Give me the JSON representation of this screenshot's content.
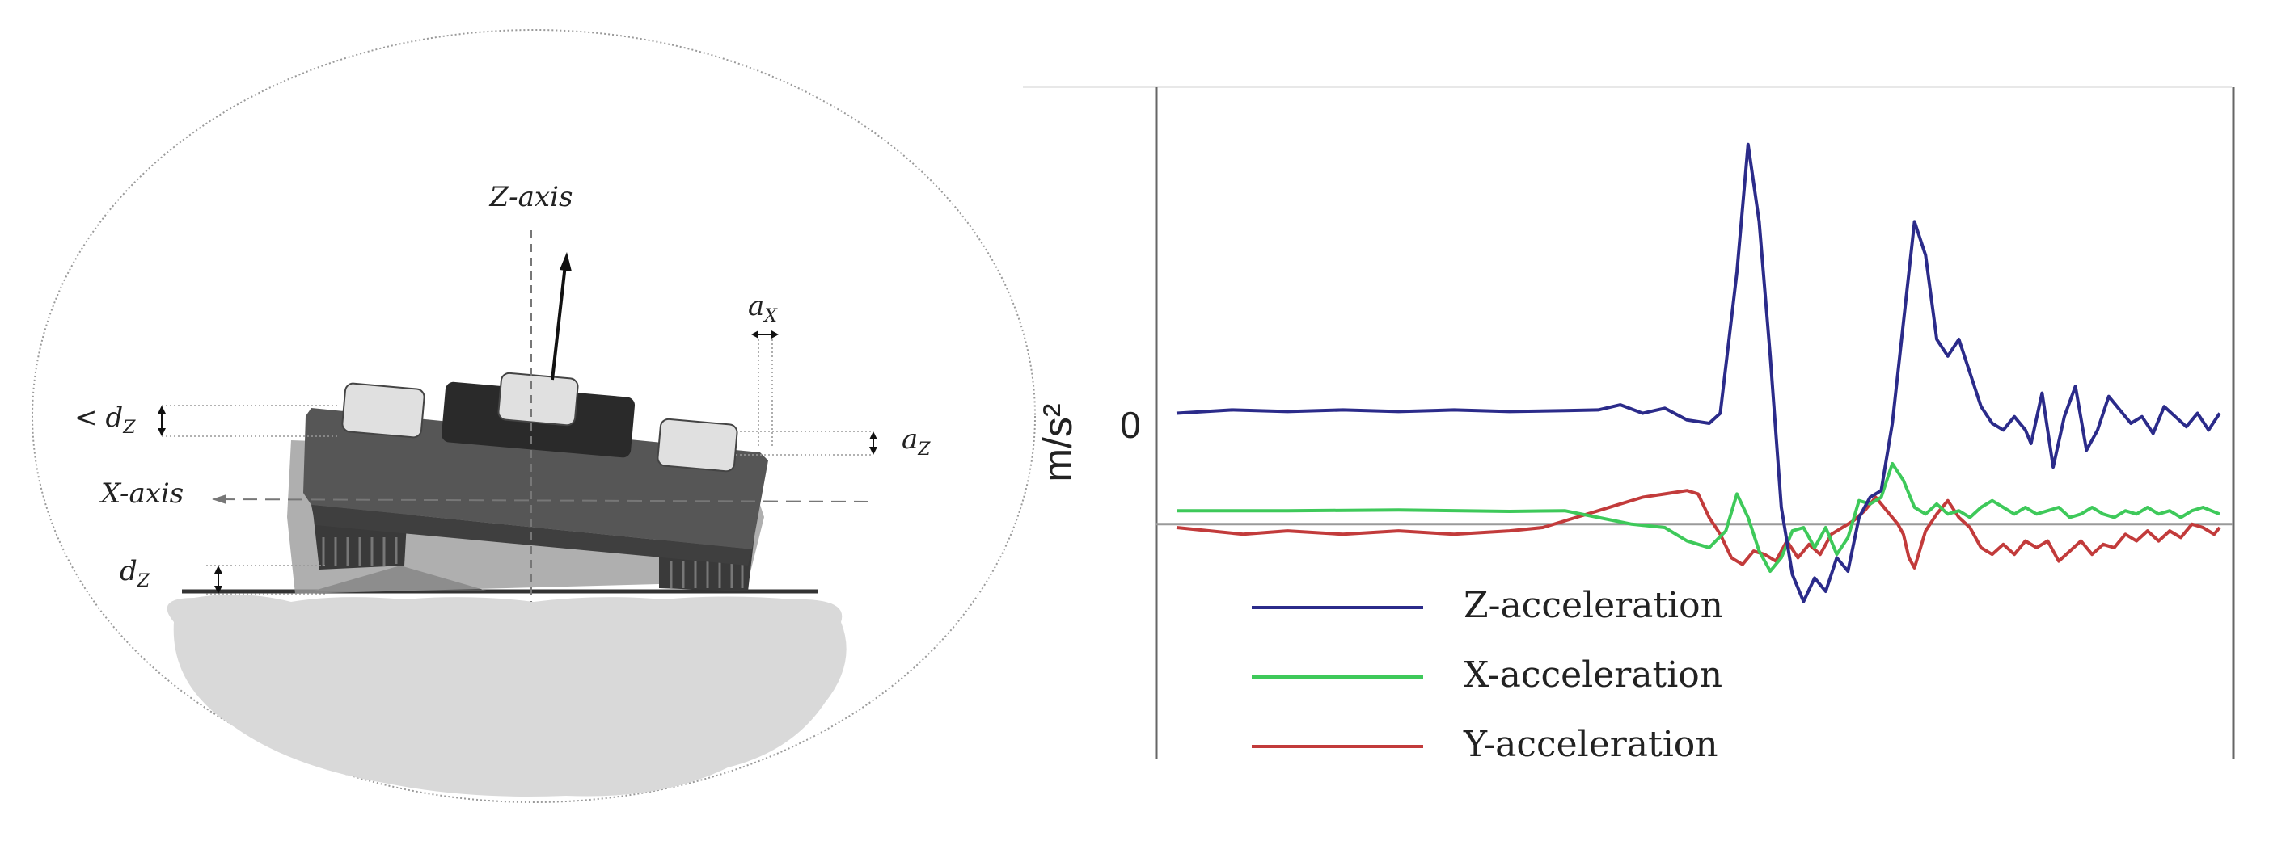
{
  "diagram": {
    "z_axis_label": "Z-axis",
    "x_axis_label": "X-axis",
    "ax_label": "a",
    "ax_sub": "X",
    "az_label": "a",
    "az_sub": "Z",
    "lt_dz_prefix": "<",
    "lt_dz_label": "d",
    "lt_dz_sub": "Z",
    "dz_label": "d",
    "dz_sub": "Z"
  },
  "chart_data": {
    "type": "line",
    "ylabel": "m/s²",
    "zero_tick": "0",
    "colors": {
      "Z": "#2b2b8a",
      "X": "#3ec95a",
      "Y": "#c23b3b"
    },
    "series": [
      {
        "name": "Z-acceleration",
        "key": "Z",
        "points": [
          [
            0,
            3.3
          ],
          [
            5,
            3.4
          ],
          [
            10,
            3.35
          ],
          [
            15,
            3.4
          ],
          [
            20,
            3.35
          ],
          [
            25,
            3.4
          ],
          [
            30,
            3.35
          ],
          [
            35,
            3.38
          ],
          [
            38,
            3.4
          ],
          [
            40,
            3.55
          ],
          [
            42,
            3.3
          ],
          [
            44,
            3.45
          ],
          [
            46,
            3.1
          ],
          [
            48,
            3.0
          ],
          [
            49,
            3.3
          ],
          [
            50.5,
            7.5
          ],
          [
            51.5,
            11.3
          ],
          [
            52.5,
            9.0
          ],
          [
            53.5,
            5.0
          ],
          [
            54.5,
            0.5
          ],
          [
            55.5,
            -1.5
          ],
          [
            56.5,
            -2.3
          ],
          [
            57.5,
            -1.6
          ],
          [
            58.5,
            -2.0
          ],
          [
            59.5,
            -1.0
          ],
          [
            60.5,
            -1.4
          ],
          [
            61.5,
            0.2
          ],
          [
            62.5,
            0.8
          ],
          [
            63.5,
            1.0
          ],
          [
            64.5,
            3.0
          ],
          [
            65.5,
            6.0
          ],
          [
            66.5,
            9.0
          ],
          [
            67.5,
            8.0
          ],
          [
            68.5,
            5.5
          ],
          [
            69.5,
            5.0
          ],
          [
            70.5,
            5.5
          ],
          [
            71.5,
            4.5
          ],
          [
            72.5,
            3.5
          ],
          [
            73.5,
            3.0
          ],
          [
            74.5,
            2.8
          ],
          [
            75.5,
            3.2
          ],
          [
            76.5,
            2.8
          ],
          [
            77,
            2.4
          ],
          [
            78,
            3.9
          ],
          [
            79,
            1.7
          ],
          [
            80,
            3.2
          ],
          [
            81,
            4.1
          ],
          [
            82,
            2.2
          ],
          [
            83,
            2.8
          ],
          [
            84,
            3.8
          ],
          [
            85,
            3.4
          ],
          [
            86,
            3.0
          ],
          [
            87,
            3.2
          ],
          [
            88,
            2.7
          ],
          [
            89,
            3.5
          ],
          [
            90,
            3.2
          ],
          [
            91,
            2.9
          ],
          [
            92,
            3.3
          ],
          [
            93,
            2.8
          ],
          [
            94,
            3.3
          ]
        ]
      },
      {
        "name": "X-acceleration",
        "key": "X",
        "points": [
          [
            0,
            0.4
          ],
          [
            10,
            0.4
          ],
          [
            20,
            0.42
          ],
          [
            30,
            0.38
          ],
          [
            35,
            0.4
          ],
          [
            38,
            0.2
          ],
          [
            41,
            0.0
          ],
          [
            44,
            -0.1
          ],
          [
            46,
            -0.5
          ],
          [
            48,
            -0.7
          ],
          [
            49.5,
            -0.2
          ],
          [
            50.5,
            0.9
          ],
          [
            51.5,
            0.2
          ],
          [
            52.5,
            -0.8
          ],
          [
            53.5,
            -1.4
          ],
          [
            54.5,
            -1.0
          ],
          [
            55.5,
            -0.2
          ],
          [
            56.5,
            -0.1
          ],
          [
            57.5,
            -0.7
          ],
          [
            58.5,
            -0.1
          ],
          [
            59.5,
            -0.9
          ],
          [
            60.5,
            -0.4
          ],
          [
            61.5,
            0.7
          ],
          [
            62.5,
            0.6
          ],
          [
            63.5,
            0.8
          ],
          [
            64.5,
            1.8
          ],
          [
            65.5,
            1.3
          ],
          [
            66.5,
            0.5
          ],
          [
            67.5,
            0.3
          ],
          [
            68.5,
            0.6
          ],
          [
            69.5,
            0.3
          ],
          [
            70.5,
            0.4
          ],
          [
            71.5,
            0.2
          ],
          [
            72.5,
            0.5
          ],
          [
            73.5,
            0.7
          ],
          [
            74.5,
            0.5
          ],
          [
            75.5,
            0.3
          ],
          [
            76.5,
            0.5
          ],
          [
            77.5,
            0.3
          ],
          [
            78.5,
            0.4
          ],
          [
            79.5,
            0.5
          ],
          [
            80.5,
            0.2
          ],
          [
            81.5,
            0.3
          ],
          [
            82.5,
            0.5
          ],
          [
            83.5,
            0.3
          ],
          [
            84.5,
            0.2
          ],
          [
            85.5,
            0.4
          ],
          [
            86.5,
            0.3
          ],
          [
            87.5,
            0.5
          ],
          [
            88.5,
            0.3
          ],
          [
            89.5,
            0.4
          ],
          [
            90.5,
            0.2
          ],
          [
            91.5,
            0.4
          ],
          [
            92.5,
            0.5
          ],
          [
            94,
            0.3
          ]
        ]
      },
      {
        "name": "Y-acceleration",
        "key": "Y",
        "points": [
          [
            0,
            -0.1
          ],
          [
            3,
            -0.2
          ],
          [
            6,
            -0.3
          ],
          [
            10,
            -0.2
          ],
          [
            15,
            -0.3
          ],
          [
            20,
            -0.2
          ],
          [
            25,
            -0.3
          ],
          [
            30,
            -0.2
          ],
          [
            33,
            -0.1
          ],
          [
            36,
            0.2
          ],
          [
            38,
            0.4
          ],
          [
            40,
            0.6
          ],
          [
            42,
            0.8
          ],
          [
            44,
            0.9
          ],
          [
            46,
            1.0
          ],
          [
            47,
            0.9
          ],
          [
            48,
            0.2
          ],
          [
            49,
            -0.3
          ],
          [
            50,
            -1.0
          ],
          [
            51,
            -1.2
          ],
          [
            52,
            -0.8
          ],
          [
            53,
            -0.9
          ],
          [
            54,
            -1.1
          ],
          [
            55,
            -0.5
          ],
          [
            56,
            -1.0
          ],
          [
            57,
            -0.6
          ],
          [
            58,
            -0.9
          ],
          [
            59,
            -0.3
          ],
          [
            60,
            -0.1
          ],
          [
            61,
            0.1
          ],
          [
            62,
            0.4
          ],
          [
            63,
            0.8
          ],
          [
            64,
            0.4
          ],
          [
            65,
            0.0
          ],
          [
            65.5,
            -0.3
          ],
          [
            66,
            -1.0
          ],
          [
            66.5,
            -1.3
          ],
          [
            67.5,
            -0.2
          ],
          [
            68.5,
            0.3
          ],
          [
            69.5,
            0.7
          ],
          [
            70.5,
            0.2
          ],
          [
            71.5,
            -0.1
          ],
          [
            72.5,
            -0.7
          ],
          [
            73.5,
            -0.9
          ],
          [
            74.5,
            -0.6
          ],
          [
            75.5,
            -0.9
          ],
          [
            76.5,
            -0.5
          ],
          [
            77.5,
            -0.7
          ],
          [
            78.5,
            -0.5
          ],
          [
            79.5,
            -1.1
          ],
          [
            80.5,
            -0.8
          ],
          [
            81.5,
            -0.5
          ],
          [
            82.5,
            -0.9
          ],
          [
            83.5,
            -0.6
          ],
          [
            84.5,
            -0.7
          ],
          [
            85.5,
            -0.3
          ],
          [
            86.5,
            -0.5
          ],
          [
            87.5,
            -0.2
          ],
          [
            88.5,
            -0.5
          ],
          [
            89.5,
            -0.2
          ],
          [
            90.5,
            -0.4
          ],
          [
            91.5,
            0.0
          ],
          [
            92.5,
            -0.1
          ],
          [
            93.5,
            -0.3
          ],
          [
            94,
            -0.1
          ]
        ]
      }
    ],
    "xlim": [
      0,
      94
    ],
    "ylim": [
      -7,
      13
    ]
  }
}
